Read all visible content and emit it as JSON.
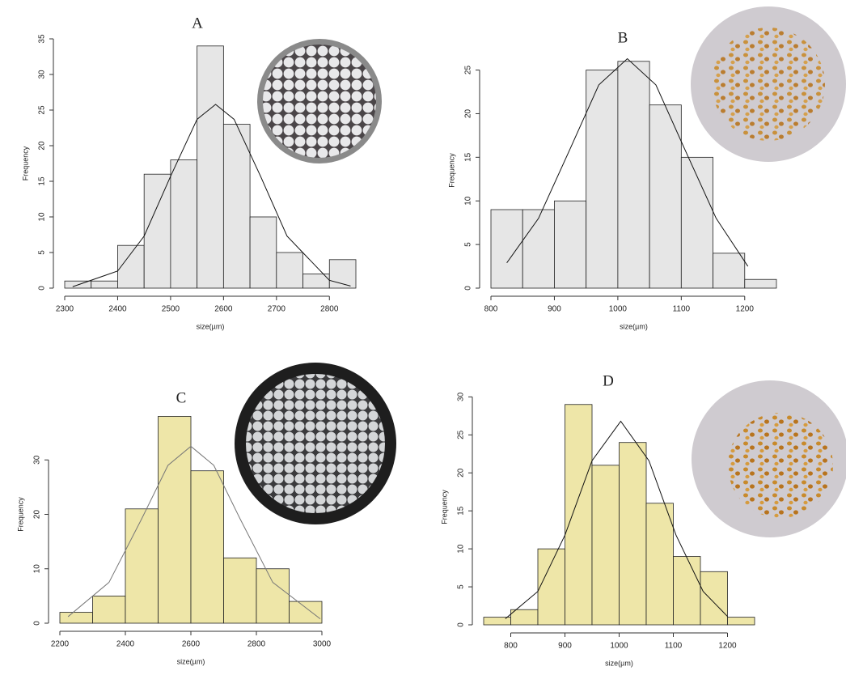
{
  "chart_data": [
    {
      "type": "histogram",
      "title": "A",
      "x_label": "size(µm)",
      "y_label": "Frequency",
      "bins": [
        2300,
        2350,
        2400,
        2450,
        2500,
        2550,
        2600,
        2650,
        2700,
        2750,
        2800,
        2850
      ],
      "values": [
        1,
        1,
        6,
        16,
        18,
        34,
        23,
        10,
        5,
        2,
        4
      ],
      "color": "#e6e6e6",
      "xlim": [
        2300,
        2850
      ],
      "ylim": [
        0,
        35
      ],
      "xticks": [
        2300,
        2400,
        2500,
        2600,
        2700,
        2800
      ],
      "yticks": [
        0,
        5,
        10,
        15,
        20,
        25,
        30,
        35
      ],
      "curve": {
        "x": [
          2315,
          2400,
          2450,
          2500,
          2550,
          2585,
          2620,
          2670,
          2720,
          2800,
          2840
        ],
        "values": [
          0.2,
          2.4,
          7.3,
          15.7,
          23.7,
          25.8,
          23.7,
          15.7,
          7.3,
          1.1,
          0.3
        ],
        "color": "#111111"
      }
    },
    {
      "type": "histogram",
      "title": "B",
      "x_label": "size(µm)",
      "y_label": "Frequency",
      "bins": [
        800,
        850,
        900,
        950,
        1000,
        1050,
        1100,
        1150,
        1200,
        1250
      ],
      "values": [
        9,
        9,
        10,
        25,
        26,
        21,
        15,
        4,
        1
      ],
      "color": "#e6e6e6",
      "xlim": [
        800,
        1250
      ],
      "ylim": [
        0,
        27
      ],
      "xticks": [
        800,
        900,
        1000,
        1100,
        1200
      ],
      "yticks": [
        0,
        5,
        10,
        15,
        20,
        25
      ],
      "curve": {
        "x": [
          825,
          875,
          925,
          970,
          1015,
          1060,
          1105,
          1155,
          1205
        ],
        "values": [
          2.9,
          8.0,
          16.0,
          23.3,
          26.3,
          23.3,
          16.0,
          8.0,
          2.5
        ],
        "color": "#111111"
      }
    },
    {
      "type": "histogram",
      "title": "C",
      "x_label": "size(µm)",
      "y_label": "Frequency",
      "bins": [
        2200,
        2300,
        2400,
        2500,
        2600,
        2700,
        2800,
        2900,
        3000
      ],
      "values": [
        2,
        5,
        21,
        38,
        28,
        12,
        10,
        4
      ],
      "color": "#eee6a8",
      "xlim": [
        2200,
        3000
      ],
      "ylim": [
        0,
        40
      ],
      "xticks": [
        2200,
        2400,
        2600,
        2800,
        3000
      ],
      "yticks": [
        0,
        10,
        20,
        30
      ],
      "curve": {
        "x": [
          2225,
          2350,
          2450,
          2530,
          2600,
          2670,
          2750,
          2850,
          2995
        ],
        "values": [
          1.2,
          7.5,
          19.2,
          29.0,
          32.5,
          29.0,
          19.2,
          7.5,
          0.8
        ],
        "color": "#777777"
      }
    },
    {
      "type": "histogram",
      "title": "D",
      "x_label": "size(µm)",
      "y_label": "Frequency",
      "bins": [
        750,
        800,
        850,
        900,
        950,
        1000,
        1050,
        1100,
        1150,
        1200,
        1250
      ],
      "values": [
        1,
        2,
        10,
        29,
        21,
        24,
        16,
        9,
        7,
        1
      ],
      "color": "#eee6a8",
      "xlim": [
        750,
        1250
      ],
      "ylim": [
        0,
        31
      ],
      "xticks": [
        800,
        900,
        1000,
        1100,
        1200
      ],
      "yticks": [
        0,
        5,
        10,
        15,
        20,
        25,
        30
      ],
      "curve": {
        "x": [
          790,
          850,
          900,
          950,
          1003,
          1055,
          1105,
          1155,
          1200
        ],
        "values": [
          0.8,
          4.4,
          11.8,
          21.6,
          26.8,
          21.6,
          11.8,
          4.4,
          1.1
        ],
        "color": "#111111"
      }
    }
  ]
}
